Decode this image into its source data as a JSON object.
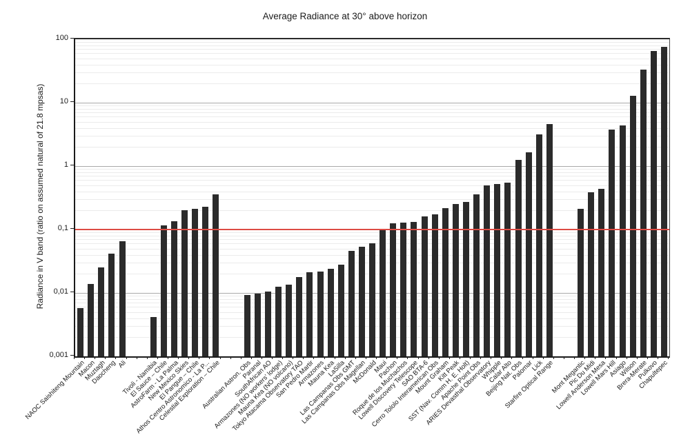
{
  "title": "Average Radiance at 30° above horizon",
  "ylabel": "Radiance in V band (ratio on assumed natural of 21.8 mpsas)",
  "chart_data": {
    "type": "bar",
    "scale": "log",
    "title": "Average Radiance at 30° above horizon",
    "xlabel": "",
    "ylabel": "Radiance in V band (ratio on assumed natural of 21.8 mpsas)",
    "ylim": [
      0.001,
      100
    ],
    "ytick_labels": [
      "100",
      "10",
      "1",
      "0,1",
      "0,01",
      "0,001"
    ],
    "ytick_values": [
      100,
      10,
      1,
      0.1,
      0.01,
      0.001
    ],
    "grid": "on",
    "legend": "none",
    "bar_color": "#2b2b2b",
    "grid_major_color": "#a8a8a8",
    "grid_minor_color": "#ebebeb",
    "reference_line": {
      "value": 0.1,
      "color": "#dd4b43"
    },
    "group_breaks_after": [
      4,
      11,
      41
    ],
    "categories": [
      "NAOC Saishiteng Mountain",
      "Macon",
      "Muztagh",
      "Daocheng",
      "Ali",
      "Tivoli - Namibia",
      "El Sauce – Chile",
      "AstroFarm - La Palma",
      "New Mexico Skies",
      "El Pangue – Chile",
      "Athos Centro Astronomico - La P...",
      "Celestial Exploration – Chile",
      "Australian Astron. Obs",
      "Paranal",
      "SouthAfrican AO",
      "Armazones (NO workers' lodge)",
      "Mauna Kea (NO volcano)",
      "Tokyo Atacama Observatory TAO",
      "San Pedro Martir",
      "Armazones",
      "Mauna Kea",
      "LaSilla",
      "Las Campanas Obs GMT",
      "Las Campanas Obs Magellan",
      "McDonald",
      "Maui",
      "Pachon",
      "Roque de los Muchachos",
      "Lowell Discovery Telescope",
      "SAO BTA-6",
      "Cerro Tololo Interamerican Obs",
      "Mount Graham",
      "Kitt Peak",
      "SST (Nav. Comm H. E. Holt)",
      "Apache Point Obs",
      "ARIES Devasthal Observatory",
      "Whipple",
      "Calar Alto",
      "Beijing Nat. Obs",
      "Palomar",
      "Lick",
      "Starfire Optical Range",
      "Mont Megantic",
      "Pic Du Midi",
      "Lowell Anderson Mesa",
      "Lowell Mars Hill",
      "Asiago",
      "Wilson",
      "Brera-Merate",
      "Pulkovo",
      "Chapultepec"
    ],
    "values": [
      0.0058,
      0.014,
      0.025,
      0.042,
      0.065,
      0.0042,
      0.115,
      0.135,
      0.2,
      0.21,
      0.23,
      0.36,
      0.0092,
      0.0097,
      0.0105,
      0.0125,
      0.0135,
      0.018,
      0.021,
      0.022,
      0.024,
      0.028,
      0.046,
      0.054,
      0.061,
      0.1,
      0.125,
      0.13,
      0.133,
      0.16,
      0.175,
      0.22,
      0.25,
      0.27,
      0.36,
      0.5,
      0.52,
      0.55,
      1.25,
      1.65,
      3.2,
      4.6,
      0.21,
      0.39,
      0.44,
      3.8,
      4.4,
      13,
      33,
      65,
      76
    ]
  }
}
